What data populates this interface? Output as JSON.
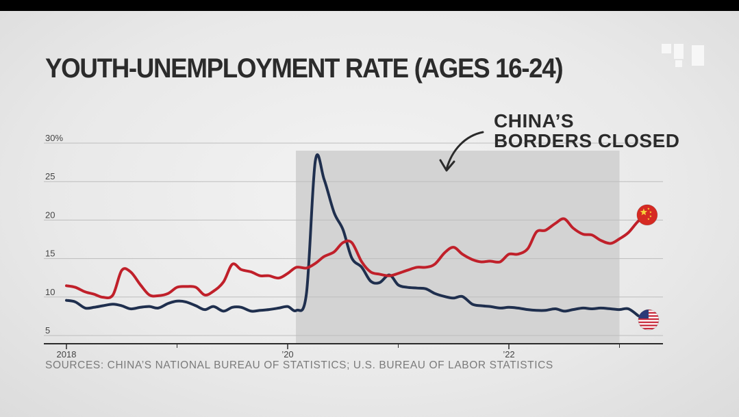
{
  "chart_data": {
    "type": "line",
    "title": "YOUTH-UNEMPLOYMENT RATE (AGES 16-24)",
    "source": "SOURCES: CHINA’S NATIONAL BUREAU OF STATISTICS; U.S. BUREAU OF LABOR STATISTICS",
    "annotation": {
      "lines": [
        "CHINA’S",
        "BORDERS CLOSED"
      ],
      "x_start": 2020.0,
      "x_end": 2023.0
    },
    "ylim": [
      5,
      30
    ],
    "xlim": [
      2018.0,
      2023.4
    ],
    "y_ticks": [
      {
        "value": 30,
        "label": "30%"
      },
      {
        "value": 25,
        "label": "25"
      },
      {
        "value": 20,
        "label": "20"
      },
      {
        "value": 15,
        "label": "15"
      },
      {
        "value": 10,
        "label": "10"
      },
      {
        "value": 5,
        "label": "5"
      }
    ],
    "x_ticks": [
      {
        "value": 2018.0,
        "label": "2018"
      },
      {
        "value": 2020.0,
        "label": "’20"
      },
      {
        "value": 2022.0,
        "label": "’22"
      }
    ],
    "x_minor_ticks": [
      2019.0,
      2021.0,
      2023.0
    ],
    "grid": true,
    "series": [
      {
        "name": "China",
        "flag": "china-flag",
        "color": "#c0202a",
        "points": [
          [
            2018.0,
            11.2
          ],
          [
            2018.08,
            11.0
          ],
          [
            2018.17,
            10.4
          ],
          [
            2018.25,
            10.1
          ],
          [
            2018.33,
            9.7
          ],
          [
            2018.42,
            10.0
          ],
          [
            2018.5,
            13.2
          ],
          [
            2018.58,
            13.0
          ],
          [
            2018.67,
            11.3
          ],
          [
            2018.75,
            10.0
          ],
          [
            2018.83,
            9.9
          ],
          [
            2018.92,
            10.2
          ],
          [
            2019.0,
            11.0
          ],
          [
            2019.08,
            11.1
          ],
          [
            2019.17,
            11.0
          ],
          [
            2019.25,
            10.0
          ],
          [
            2019.33,
            10.5
          ],
          [
            2019.42,
            11.7
          ],
          [
            2019.5,
            14.0
          ],
          [
            2019.58,
            13.3
          ],
          [
            2019.67,
            13.0
          ],
          [
            2019.75,
            12.5
          ],
          [
            2019.83,
            12.5
          ],
          [
            2019.92,
            12.2
          ],
          [
            2020.0,
            12.8
          ],
          [
            2020.08,
            13.6
          ],
          [
            2020.17,
            13.5
          ],
          [
            2020.25,
            14.1
          ],
          [
            2020.33,
            15.0
          ],
          [
            2020.42,
            15.6
          ],
          [
            2020.5,
            16.8
          ],
          [
            2020.58,
            16.8
          ],
          [
            2020.67,
            14.3
          ],
          [
            2020.75,
            13.0
          ],
          [
            2020.83,
            12.7
          ],
          [
            2020.92,
            12.5
          ],
          [
            2021.0,
            12.8
          ],
          [
            2021.08,
            13.2
          ],
          [
            2021.17,
            13.6
          ],
          [
            2021.25,
            13.6
          ],
          [
            2021.33,
            14.0
          ],
          [
            2021.42,
            15.5
          ],
          [
            2021.5,
            16.2
          ],
          [
            2021.58,
            15.3
          ],
          [
            2021.67,
            14.6
          ],
          [
            2021.75,
            14.3
          ],
          [
            2021.83,
            14.4
          ],
          [
            2021.92,
            14.3
          ],
          [
            2022.0,
            15.3
          ],
          [
            2022.08,
            15.3
          ],
          [
            2022.17,
            16.0
          ],
          [
            2022.25,
            18.2
          ],
          [
            2022.33,
            18.4
          ],
          [
            2022.42,
            19.3
          ],
          [
            2022.5,
            19.9
          ],
          [
            2022.58,
            18.7
          ],
          [
            2022.67,
            17.9
          ],
          [
            2022.75,
            17.8
          ],
          [
            2022.83,
            17.1
          ],
          [
            2022.92,
            16.7
          ],
          [
            2023.0,
            17.3
          ],
          [
            2023.08,
            18.1
          ],
          [
            2023.17,
            19.6
          ],
          [
            2023.25,
            20.4
          ]
        ]
      },
      {
        "name": "United States",
        "flag": "us-flag",
        "color": "#1f2f4e",
        "points": [
          [
            2018.0,
            9.3
          ],
          [
            2018.08,
            9.1
          ],
          [
            2018.17,
            8.3
          ],
          [
            2018.25,
            8.4
          ],
          [
            2018.33,
            8.6
          ],
          [
            2018.42,
            8.8
          ],
          [
            2018.5,
            8.6
          ],
          [
            2018.58,
            8.2
          ],
          [
            2018.67,
            8.4
          ],
          [
            2018.75,
            8.5
          ],
          [
            2018.83,
            8.3
          ],
          [
            2018.92,
            8.9
          ],
          [
            2019.0,
            9.2
          ],
          [
            2019.08,
            9.1
          ],
          [
            2019.17,
            8.6
          ],
          [
            2019.25,
            8.1
          ],
          [
            2019.33,
            8.5
          ],
          [
            2019.42,
            7.9
          ],
          [
            2019.5,
            8.4
          ],
          [
            2019.58,
            8.4
          ],
          [
            2019.67,
            7.9
          ],
          [
            2019.75,
            8.0
          ],
          [
            2019.83,
            8.1
          ],
          [
            2019.92,
            8.3
          ],
          [
            2020.0,
            8.5
          ],
          [
            2020.08,
            8.0
          ],
          [
            2020.17,
            10.2
          ],
          [
            2020.25,
            27.4
          ],
          [
            2020.33,
            25.0
          ],
          [
            2020.42,
            20.7
          ],
          [
            2020.5,
            18.5
          ],
          [
            2020.58,
            14.8
          ],
          [
            2020.67,
            13.6
          ],
          [
            2020.75,
            11.8
          ],
          [
            2020.83,
            11.6
          ],
          [
            2020.92,
            12.6
          ],
          [
            2021.0,
            11.3
          ],
          [
            2021.08,
            11.0
          ],
          [
            2021.17,
            10.9
          ],
          [
            2021.25,
            10.8
          ],
          [
            2021.33,
            10.2
          ],
          [
            2021.42,
            9.8
          ],
          [
            2021.5,
            9.6
          ],
          [
            2021.58,
            9.8
          ],
          [
            2021.67,
            8.8
          ],
          [
            2021.75,
            8.6
          ],
          [
            2021.83,
            8.5
          ],
          [
            2021.92,
            8.3
          ],
          [
            2022.0,
            8.4
          ],
          [
            2022.08,
            8.3
          ],
          [
            2022.17,
            8.1
          ],
          [
            2022.25,
            8.0
          ],
          [
            2022.33,
            8.0
          ],
          [
            2022.42,
            8.2
          ],
          [
            2022.5,
            7.9
          ],
          [
            2022.58,
            8.1
          ],
          [
            2022.67,
            8.3
          ],
          [
            2022.75,
            8.2
          ],
          [
            2022.83,
            8.3
          ],
          [
            2022.92,
            8.2
          ],
          [
            2023.0,
            8.1
          ],
          [
            2023.08,
            8.2
          ],
          [
            2023.17,
            7.3
          ]
        ]
      }
    ]
  }
}
